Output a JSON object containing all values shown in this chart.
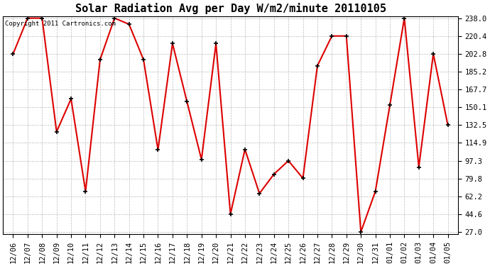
{
  "title": "Solar Radiation Avg per Day W/m2/minute 20110105",
  "copyright": "Copyright 2011 Cartronics.com",
  "labels": [
    "12/06",
    "12/07",
    "12/08",
    "12/09",
    "12/10",
    "12/11",
    "12/12",
    "12/13",
    "12/14",
    "12/15",
    "12/16",
    "12/17",
    "12/18",
    "12/19",
    "12/20",
    "12/21",
    "12/22",
    "12/23",
    "12/24",
    "12/25",
    "12/26",
    "12/27",
    "12/28",
    "12/29",
    "12/30",
    "12/31",
    "01/01",
    "01/02",
    "01/03",
    "01/04",
    "01/05"
  ],
  "values": [
    202.8,
    238.0,
    238.0,
    125.9,
    158.3,
    67.0,
    197.0,
    238.0,
    232.0,
    197.0,
    108.0,
    213.0,
    155.5,
    98.5,
    213.0,
    44.6,
    108.5,
    65.0,
    84.0,
    97.3,
    80.0,
    191.0,
    220.4,
    220.4,
    27.0,
    67.0,
    152.0,
    238.0,
    91.0,
    202.8,
    132.5
  ],
  "line_color": "#dd0000",
  "marker_color": "#000000",
  "bg_color": "#ffffff",
  "plot_bg_color": "#ffffff",
  "grid_color": "#bbbbbb",
  "yticks": [
    27.0,
    44.6,
    62.2,
    79.8,
    97.3,
    114.9,
    132.5,
    150.1,
    167.7,
    185.2,
    202.8,
    220.4,
    238.0
  ],
  "ylim": [
    27.0,
    238.0
  ],
  "title_fontsize": 11,
  "copyright_fontsize": 6.5,
  "tick_fontsize": 7.5
}
